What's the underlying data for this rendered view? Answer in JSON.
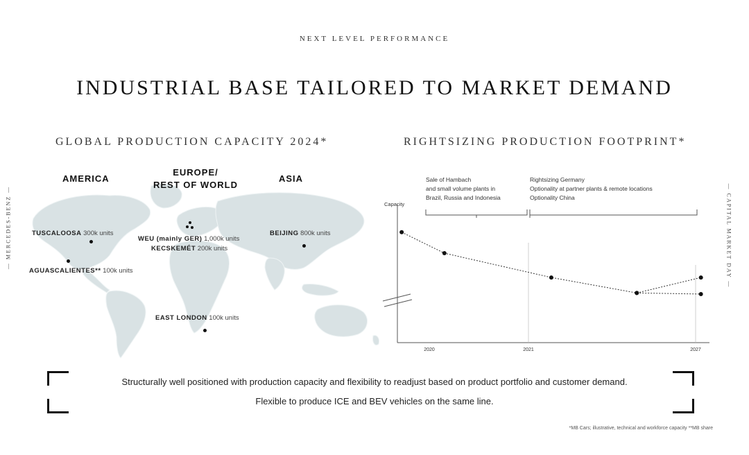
{
  "header": {
    "kicker": "NEXT LEVEL PERFORMANCE",
    "title": "INDUSTRIAL BASE TAILORED TO MARKET DEMAND"
  },
  "side": {
    "left": "— MERCEDES-BENZ —",
    "right": "— CAPITAL MARKET DAY —"
  },
  "left_panel": {
    "heading": "GLOBAL PRODUCTION CAPACITY 2024*",
    "regions": {
      "america": "AMERICA",
      "europe_line1": "EUROPE/",
      "europe_line2": "REST OF  WORLD",
      "asia": "ASIA"
    },
    "sites": [
      {
        "name": "TUSCALOOSA",
        "units": "300k units"
      },
      {
        "name": "AGUASCALIENTES**",
        "units": "100k units"
      },
      {
        "name": "WEU (mainly GER)",
        "units": "1,000k units"
      },
      {
        "name": "KECSKEMÉT",
        "units": "200k units"
      },
      {
        "name": "BEIJING",
        "units": "800k units"
      },
      {
        "name": "EAST LONDON",
        "units": "100k units"
      }
    ]
  },
  "right_panel": {
    "heading": "RIGHTSIZING PRODUCTION FOOTPRINT*"
  },
  "chart_data": {
    "type": "line",
    "ylabel": "Capacity",
    "xlabel": "",
    "x_ticks": [
      "2020",
      "2021",
      "2027"
    ],
    "y_axis_break": true,
    "illustrative": true,
    "annotations": [
      {
        "span": [
          "2020",
          "2021"
        ],
        "lines": [
          "Sale of Hambach",
          "and small volume plants in",
          "Brazil, Russia and Indonesia"
        ]
      },
      {
        "span": [
          "2021",
          "2027"
        ],
        "lines": [
          "Rightsizing Germany",
          "Optionality at partner plants & remote locations",
          "Optionality China"
        ]
      }
    ],
    "series": [
      {
        "x": [
          2020,
          2021,
          2023.5,
          2025.5,
          2027
        ],
        "values": [
          100,
          81,
          59,
          45,
          59
        ]
      },
      {
        "x": [
          2025.5,
          2027
        ],
        "values": [
          45,
          44
        ]
      }
    ],
    "xlim": [
      2019.9,
      2027.2
    ],
    "ylim": [
      0,
      125
    ]
  },
  "statement": {
    "line1": "Structurally well positioned with production capacity and flexibility to readjust based on product portfolio and customer demand.",
    "line2": "Flexible to produce ICE and BEV vehicles on the same line."
  },
  "footnote": "*MB Cars; illustrative, technical and workforce capacity  **MB share",
  "colors": {
    "map_fill": "#d9e2e4",
    "text": "#222222",
    "line": "#333333"
  }
}
